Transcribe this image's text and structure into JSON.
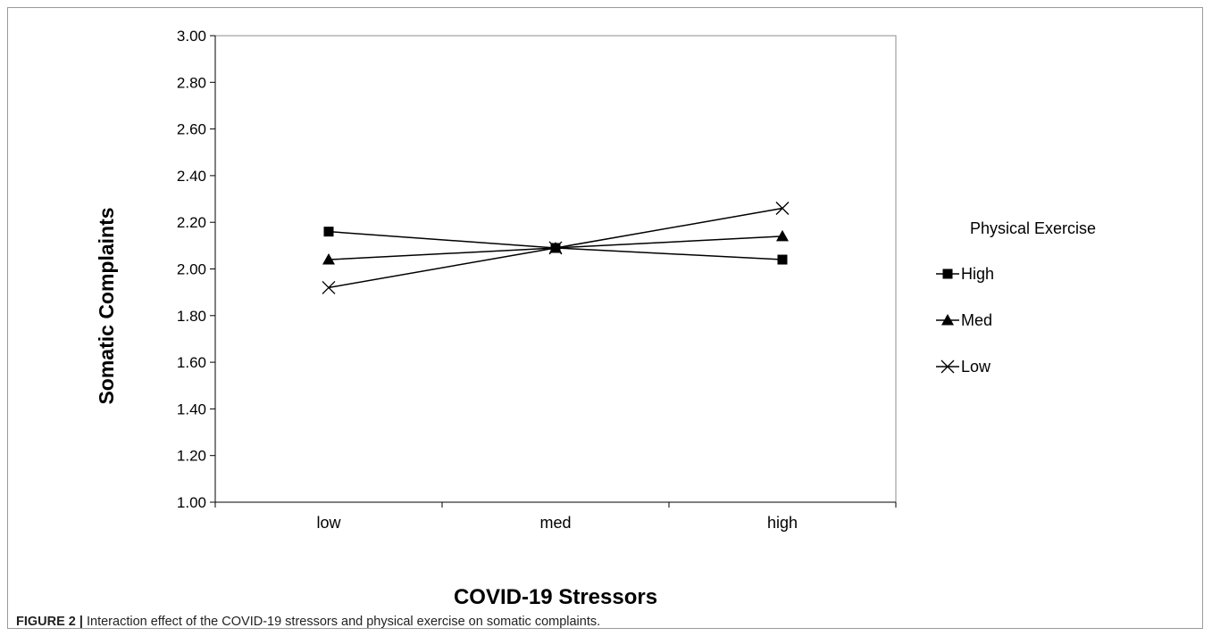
{
  "chart_data": {
    "type": "line",
    "title": "",
    "xlabel": "COVID-19 Stressors",
    "ylabel": "Somatic Complaints",
    "categories": [
      "low",
      "med",
      "high"
    ],
    "ylim": [
      1.0,
      3.0
    ],
    "yticks": [
      "3.00",
      "2.80",
      "2.60",
      "2.40",
      "2.20",
      "2.00",
      "1.80",
      "1.60",
      "1.40",
      "1.20",
      "1.00"
    ],
    "grid": false,
    "legend": {
      "title": "Physical Exercise",
      "placement": "right"
    },
    "series": [
      {
        "name": "High",
        "marker": "square",
        "values": [
          2.16,
          2.09,
          2.04
        ]
      },
      {
        "name": "Med",
        "marker": "triangle",
        "values": [
          2.04,
          2.09,
          2.14
        ]
      },
      {
        "name": "Low",
        "marker": "x",
        "values": [
          1.92,
          2.09,
          2.26
        ]
      }
    ]
  },
  "caption": {
    "label": "FIGURE 2 |",
    "text": " Interaction effect of the COVID-19 stressors and physical exercise on somatic complaints."
  }
}
